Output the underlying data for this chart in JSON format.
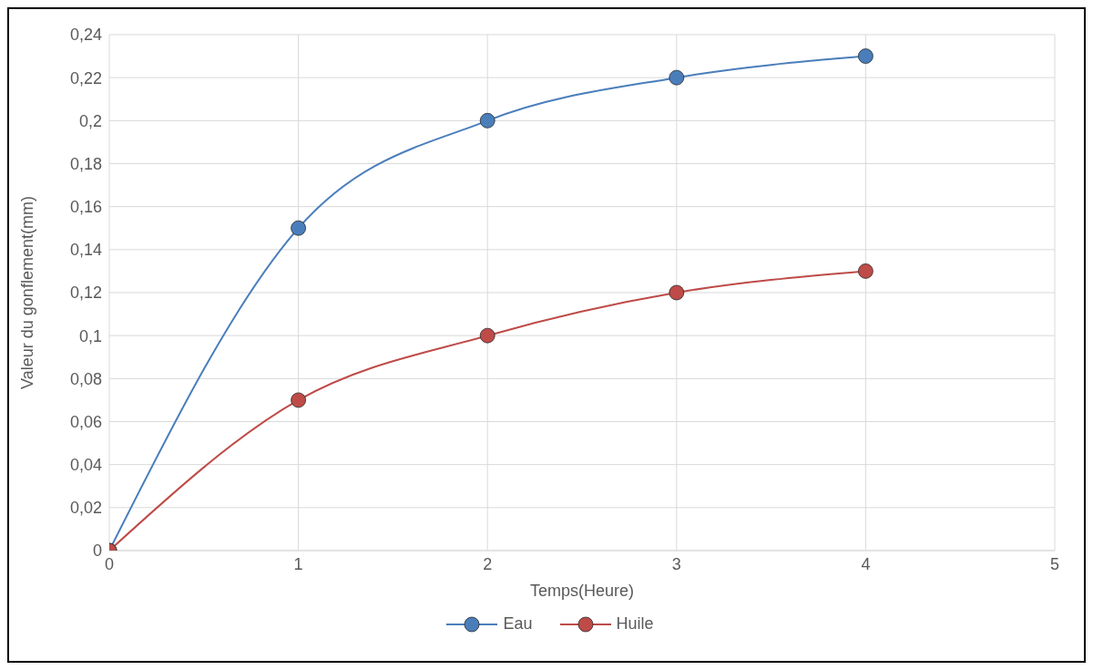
{
  "chart_data": {
    "type": "line",
    "xlabel": "Temps(Heure)",
    "ylabel": "Valeur du gonflement(mm)",
    "x": [
      0,
      1,
      2,
      3,
      4
    ],
    "series": [
      {
        "name": "Eau",
        "color": "#4a7ebb",
        "values": [
          0,
          0.15,
          0.2,
          0.22,
          0.23
        ]
      },
      {
        "name": "Huile",
        "color": "#be4b48",
        "values": [
          0,
          0.07,
          0.1,
          0.12,
          0.13
        ]
      }
    ],
    "xlim": [
      0,
      5
    ],
    "xticks": [
      0,
      1,
      2,
      3,
      4,
      5
    ],
    "ylim": [
      0,
      0.24
    ],
    "yticks": [
      0,
      {
        "value": 0.02,
        "label": "0,02"
      },
      {
        "value": 0.04,
        "label": "0,04"
      },
      {
        "value": 0.06,
        "label": "0,06"
      },
      {
        "value": 0.08,
        "label": "0,08"
      },
      {
        "value": 0.1,
        "label": "0,1"
      },
      {
        "value": 0.12,
        "label": "0,12"
      },
      {
        "value": 0.14,
        "label": "0,14"
      },
      {
        "value": 0.16,
        "label": "0,16"
      },
      {
        "value": 0.18,
        "label": "0,18"
      },
      {
        "value": 0.2,
        "label": "0,2"
      },
      {
        "value": 0.22,
        "label": "0,22"
      },
      {
        "value": 0.24,
        "label": "0,24"
      }
    ],
    "grid": true,
    "legend": "bottom",
    "marker": "circle",
    "line_style": "solid"
  }
}
